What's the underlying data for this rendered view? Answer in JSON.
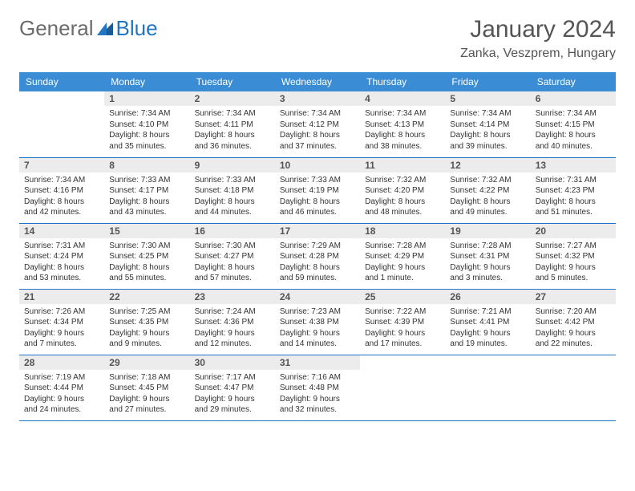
{
  "logo": {
    "word1": "General",
    "word2": "Blue"
  },
  "title": "January 2024",
  "location": "Zanka, Veszprem, Hungary",
  "colors": {
    "header_bg": "#3a8cd4",
    "divider": "#2175c4",
    "daynum_bg": "#ececec",
    "text": "#333333",
    "logo_gray": "#6b6b6b",
    "logo_blue": "#2175c4"
  },
  "weekdays": [
    "Sunday",
    "Monday",
    "Tuesday",
    "Wednesday",
    "Thursday",
    "Friday",
    "Saturday"
  ],
  "weeks": [
    [
      null,
      {
        "n": "1",
        "sunrise": "7:34 AM",
        "sunset": "4:10 PM",
        "d1": "Daylight: 8 hours",
        "d2": "and 35 minutes."
      },
      {
        "n": "2",
        "sunrise": "7:34 AM",
        "sunset": "4:11 PM",
        "d1": "Daylight: 8 hours",
        "d2": "and 36 minutes."
      },
      {
        "n": "3",
        "sunrise": "7:34 AM",
        "sunset": "4:12 PM",
        "d1": "Daylight: 8 hours",
        "d2": "and 37 minutes."
      },
      {
        "n": "4",
        "sunrise": "7:34 AM",
        "sunset": "4:13 PM",
        "d1": "Daylight: 8 hours",
        "d2": "and 38 minutes."
      },
      {
        "n": "5",
        "sunrise": "7:34 AM",
        "sunset": "4:14 PM",
        "d1": "Daylight: 8 hours",
        "d2": "and 39 minutes."
      },
      {
        "n": "6",
        "sunrise": "7:34 AM",
        "sunset": "4:15 PM",
        "d1": "Daylight: 8 hours",
        "d2": "and 40 minutes."
      }
    ],
    [
      {
        "n": "7",
        "sunrise": "7:34 AM",
        "sunset": "4:16 PM",
        "d1": "Daylight: 8 hours",
        "d2": "and 42 minutes."
      },
      {
        "n": "8",
        "sunrise": "7:33 AM",
        "sunset": "4:17 PM",
        "d1": "Daylight: 8 hours",
        "d2": "and 43 minutes."
      },
      {
        "n": "9",
        "sunrise": "7:33 AM",
        "sunset": "4:18 PM",
        "d1": "Daylight: 8 hours",
        "d2": "and 44 minutes."
      },
      {
        "n": "10",
        "sunrise": "7:33 AM",
        "sunset": "4:19 PM",
        "d1": "Daylight: 8 hours",
        "d2": "and 46 minutes."
      },
      {
        "n": "11",
        "sunrise": "7:32 AM",
        "sunset": "4:20 PM",
        "d1": "Daylight: 8 hours",
        "d2": "and 48 minutes."
      },
      {
        "n": "12",
        "sunrise": "7:32 AM",
        "sunset": "4:22 PM",
        "d1": "Daylight: 8 hours",
        "d2": "and 49 minutes."
      },
      {
        "n": "13",
        "sunrise": "7:31 AM",
        "sunset": "4:23 PM",
        "d1": "Daylight: 8 hours",
        "d2": "and 51 minutes."
      }
    ],
    [
      {
        "n": "14",
        "sunrise": "7:31 AM",
        "sunset": "4:24 PM",
        "d1": "Daylight: 8 hours",
        "d2": "and 53 minutes."
      },
      {
        "n": "15",
        "sunrise": "7:30 AM",
        "sunset": "4:25 PM",
        "d1": "Daylight: 8 hours",
        "d2": "and 55 minutes."
      },
      {
        "n": "16",
        "sunrise": "7:30 AM",
        "sunset": "4:27 PM",
        "d1": "Daylight: 8 hours",
        "d2": "and 57 minutes."
      },
      {
        "n": "17",
        "sunrise": "7:29 AM",
        "sunset": "4:28 PM",
        "d1": "Daylight: 8 hours",
        "d2": "and 59 minutes."
      },
      {
        "n": "18",
        "sunrise": "7:28 AM",
        "sunset": "4:29 PM",
        "d1": "Daylight: 9 hours",
        "d2": "and 1 minute."
      },
      {
        "n": "19",
        "sunrise": "7:28 AM",
        "sunset": "4:31 PM",
        "d1": "Daylight: 9 hours",
        "d2": "and 3 minutes."
      },
      {
        "n": "20",
        "sunrise": "7:27 AM",
        "sunset": "4:32 PM",
        "d1": "Daylight: 9 hours",
        "d2": "and 5 minutes."
      }
    ],
    [
      {
        "n": "21",
        "sunrise": "7:26 AM",
        "sunset": "4:34 PM",
        "d1": "Daylight: 9 hours",
        "d2": "and 7 minutes."
      },
      {
        "n": "22",
        "sunrise": "7:25 AM",
        "sunset": "4:35 PM",
        "d1": "Daylight: 9 hours",
        "d2": "and 9 minutes."
      },
      {
        "n": "23",
        "sunrise": "7:24 AM",
        "sunset": "4:36 PM",
        "d1": "Daylight: 9 hours",
        "d2": "and 12 minutes."
      },
      {
        "n": "24",
        "sunrise": "7:23 AM",
        "sunset": "4:38 PM",
        "d1": "Daylight: 9 hours",
        "d2": "and 14 minutes."
      },
      {
        "n": "25",
        "sunrise": "7:22 AM",
        "sunset": "4:39 PM",
        "d1": "Daylight: 9 hours",
        "d2": "and 17 minutes."
      },
      {
        "n": "26",
        "sunrise": "7:21 AM",
        "sunset": "4:41 PM",
        "d1": "Daylight: 9 hours",
        "d2": "and 19 minutes."
      },
      {
        "n": "27",
        "sunrise": "7:20 AM",
        "sunset": "4:42 PM",
        "d1": "Daylight: 9 hours",
        "d2": "and 22 minutes."
      }
    ],
    [
      {
        "n": "28",
        "sunrise": "7:19 AM",
        "sunset": "4:44 PM",
        "d1": "Daylight: 9 hours",
        "d2": "and 24 minutes."
      },
      {
        "n": "29",
        "sunrise": "7:18 AM",
        "sunset": "4:45 PM",
        "d1": "Daylight: 9 hours",
        "d2": "and 27 minutes."
      },
      {
        "n": "30",
        "sunrise": "7:17 AM",
        "sunset": "4:47 PM",
        "d1": "Daylight: 9 hours",
        "d2": "and 29 minutes."
      },
      {
        "n": "31",
        "sunrise": "7:16 AM",
        "sunset": "4:48 PM",
        "d1": "Daylight: 9 hours",
        "d2": "and 32 minutes."
      },
      null,
      null,
      null
    ]
  ]
}
